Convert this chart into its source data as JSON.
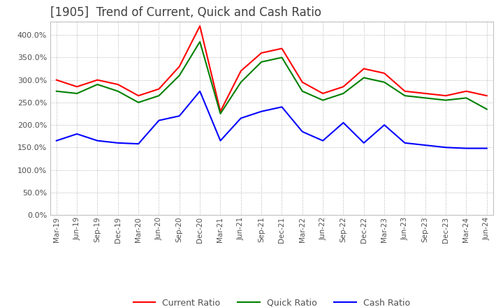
{
  "title": "[1905]  Trend of Current, Quick and Cash Ratio",
  "labels": [
    "Mar-19",
    "Jun-19",
    "Sep-19",
    "Dec-19",
    "Mar-20",
    "Jun-20",
    "Sep-20",
    "Dec-20",
    "Mar-21",
    "Jun-21",
    "Sep-21",
    "Dec-21",
    "Mar-22",
    "Jun-22",
    "Sep-22",
    "Dec-22",
    "Mar-23",
    "Jun-23",
    "Sep-23",
    "Dec-23",
    "Mar-24",
    "Jun-24"
  ],
  "current_ratio": [
    300,
    285,
    300,
    290,
    265,
    280,
    330,
    420,
    230,
    320,
    360,
    370,
    295,
    270,
    285,
    325,
    315,
    275,
    270,
    265,
    275,
    265
  ],
  "quick_ratio": [
    275,
    270,
    290,
    275,
    250,
    265,
    310,
    385,
    225,
    295,
    340,
    350,
    275,
    255,
    270,
    305,
    295,
    265,
    260,
    255,
    260,
    235
  ],
  "cash_ratio": [
    165,
    180,
    165,
    160,
    158,
    210,
    220,
    275,
    165,
    215,
    230,
    240,
    185,
    165,
    205,
    160,
    200,
    160,
    155,
    150,
    148,
    148
  ],
  "ylim": [
    0,
    430
  ],
  "yticks": [
    0,
    50,
    100,
    150,
    200,
    250,
    300,
    350,
    400
  ],
  "current_color": "#ff0000",
  "quick_color": "#008000",
  "cash_color": "#0000ff",
  "background_color": "#ffffff",
  "grid_color": "#b0b0b0",
  "title_color": "#404040",
  "title_fontsize": 12
}
